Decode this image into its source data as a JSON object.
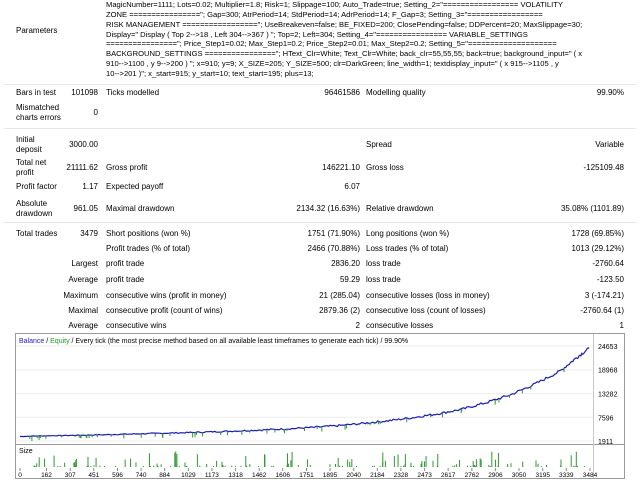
{
  "report": {
    "parameters_label": "Parameters",
    "parameters_lines": [
      "MagicNumber=1111; Lots=0.02; Multiplier=1.8; Risk=1; Slippage=100; Auto_Trade=true; Setting_2=\"================= VOLATILITY",
      "ZONE ================\"; Gap=300; AtrPeriod=14; StdPeriod=14; AdrPeriod=14; F_Gap=3; Setting_3=\"=================",
      "RISK MANAGEMENT =================\"; UseBreakeven=false; BE_FIXED=200; ClosePending=false; DDPercent=20; MaxSlippage=30;",
      "Display=\" Display ( Top 2-->18 , Left 304-->367 ) \"; Top=2; Left=304; Setting_4=\"================ VARIABLE_SETTINGS",
      "================\"; Price_Step1=0.02; Max_Step1=0.2; Price_Step2=0.01; Max_Step2=0.2; Setting_5=\"====================",
      "BACKGROUND_SETTINGS ================\"; HText_Clr=White; Text_Clr=White; back_clr=55,55,55; back=true; background_input=\" ( x",
      "910-->1100 , y 9-->200 ) \"; x=910; y=9; X_SIZE=205; Y_SIZE=500; clr=DarkGreen; line_width=1; textdisplay_input=\" ( x 915-->1105 , y",
      "10-->201 )\"; x_start=915; y_start=10; text_start=195; plus=13;"
    ],
    "bars_label": "Bars in test",
    "bars_value": "101098",
    "ticks_label": "Ticks modelled",
    "ticks_value": "96461586",
    "quality_label": "Modelling quality",
    "quality_value": "99.90%",
    "mismatch_label_1": "Mismatched",
    "mismatch_label_2": "charts errors",
    "mismatch_value": "0",
    "deposit_label_1": "Initial",
    "deposit_label_2": "deposit",
    "deposit_value": "3000.00",
    "spread_label": "Spread",
    "spread_value": "Variable",
    "netprofit_label_1": "Total net",
    "netprofit_label_2": "profit",
    "netprofit_value": "21111.62",
    "grossprofit_label": "Gross profit",
    "grossprofit_value": "146221.10",
    "grossloss_label": "Gross loss",
    "grossloss_value": "-125109.48",
    "pf_label": "Profit factor",
    "pf_value": "1.17",
    "expected_label": "Expected payoff",
    "expected_value": "6.07",
    "absdd_label_1": "Absolute",
    "absdd_label_2": "drawdown",
    "absdd_value": "961.05",
    "maxdd_label": "Maximal drawdown",
    "maxdd_value": "2134.32 (16.63%)",
    "reldd_label": "Relative drawdown",
    "reldd_value": "35.08% (1101.89)",
    "trades_label": "Total trades",
    "trades_value": "3479",
    "short_label": "Short positions (won %)",
    "short_value": "1751 (71.90%)",
    "long_label": "Long positions (won %)",
    "long_value": "1728 (69.85%)",
    "profit_trades_label": "Profit trades (% of total)",
    "profit_trades_value": "2466 (70.88%)",
    "loss_trades_label": "Loss trades (% of total)",
    "loss_trades_value": "1013 (29.12%)",
    "largest_label": "Largest",
    "largest_profit_label": "profit trade",
    "largest_profit_value": "2836.20",
    "largest_loss_label": "loss trade",
    "largest_loss_value": "-2760.64",
    "average_label": "Average",
    "average_profit_label": "profit trade",
    "average_profit_value": "59.29",
    "average_loss_label": "loss trade",
    "average_loss_value": "-123.50",
    "maximum_label": "Maximum",
    "max_cons_wins_label": "consecutive wins (profit in money)",
    "max_cons_wins_value": "21 (285.04)",
    "max_cons_losses_label": "consecutive losses (loss in money)",
    "max_cons_losses_value": "3 (-174.21)",
    "maximal_label": "Maximal",
    "maximal_profit_label": "consecutive profit (count of wins)",
    "maximal_profit_value": "2879.36 (2)",
    "maximal_loss_label": "consecutive loss (count of losses)",
    "maximal_loss_value": "-2760.64 (1)",
    "avg_cons_label": "Average",
    "avg_cons_wins_label": "consecutive wins",
    "avg_cons_wins_value": "2",
    "avg_cons_losses_label": "consecutive losses",
    "avg_cons_losses_value": "1"
  },
  "chart_legend": {
    "balance": "Balance",
    "slash1": " / ",
    "equity": "Equity",
    "rest": " / Every tick (the most precise method based on all available least timeframes to generate each tick) / 99.90%"
  },
  "colors": {
    "balance": "#1b1bb0",
    "equity": "#2e9a2e",
    "legend_balance": "#2222cc",
    "legend_equity": "#229922"
  },
  "chart_data": {
    "type": "line",
    "series": [
      {
        "name": "Balance",
        "points": [
          [
            0,
            3000
          ],
          [
            150,
            3150
          ],
          [
            300,
            3250
          ],
          [
            450,
            3350
          ],
          [
            600,
            3500
          ],
          [
            750,
            3650
          ],
          [
            900,
            3800
          ],
          [
            1050,
            3950
          ],
          [
            1200,
            4150
          ],
          [
            1350,
            4350
          ],
          [
            1500,
            4600
          ],
          [
            1650,
            4850
          ],
          [
            1800,
            5200
          ],
          [
            1950,
            5600
          ],
          [
            2100,
            6150
          ],
          [
            2250,
            6750
          ],
          [
            2400,
            7500
          ],
          [
            2550,
            8400
          ],
          [
            2700,
            9500
          ],
          [
            2850,
            11100
          ],
          [
            3000,
            13000
          ],
          [
            3150,
            15600
          ],
          [
            3300,
            18600
          ],
          [
            3400,
            21800
          ],
          [
            3479,
            24111.62
          ]
        ]
      }
    ],
    "y_ticks": [
      "24653",
      "18968",
      "13282",
      "7596",
      "1911"
    ],
    "size_label": "Size",
    "x_ticks": [
      "0",
      "162",
      "307",
      "451",
      "596",
      "740",
      "884",
      "1029",
      "1173",
      "1318",
      "1462",
      "1606",
      "1751",
      "1895",
      "2040",
      "2184",
      "2328",
      "2473",
      "2617",
      "2762",
      "2906",
      "3050",
      "3195",
      "3339",
      "3484"
    ],
    "x_range": [
      0,
      3484
    ],
    "y_range": [
      1911,
      24653
    ]
  }
}
